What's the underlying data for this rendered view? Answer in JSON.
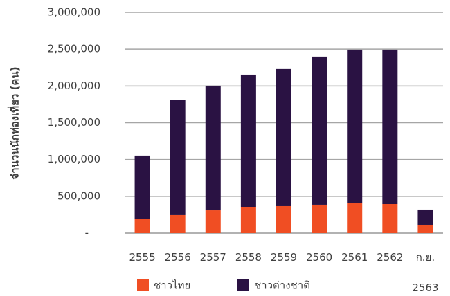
{
  "chart_data": {
    "type": "stacked_bar",
    "y_axis_label": "จำนวนนักท่องเที่ยว (คน)",
    "categories": [
      "2555",
      "2556",
      "2557",
      "2558",
      "2559",
      "2560",
      "2561",
      "2562",
      "ก.ย. 2563"
    ],
    "series": [
      {
        "name": "ชาวไทย",
        "color": "#f04e23",
        "values": [
          188000,
          245000,
          310000,
          348000,
          367000,
          386000,
          405000,
          395000,
          113000
        ]
      },
      {
        "name": "ชาวต่างชาติ",
        "color": "#2a1243",
        "values": [
          866000,
          1561000,
          1694000,
          1806000,
          1863000,
          2013000,
          2088000,
          2098000,
          207000
        ]
      }
    ],
    "ylim": [
      0,
      3000000
    ],
    "yticks": [
      {
        "value": 0,
        "label": "-"
      },
      {
        "value": 500000,
        "label": "500,000"
      },
      {
        "value": 1000000,
        "label": "1,000,000"
      },
      {
        "value": 1500000,
        "label": "1,500,000"
      },
      {
        "value": 2000000,
        "label": "2,000,000"
      },
      {
        "value": 2500000,
        "label": "2,500,000"
      },
      {
        "value": 3000000,
        "label": "3,000,000"
      }
    ],
    "grid": true,
    "legend": "bottom"
  }
}
